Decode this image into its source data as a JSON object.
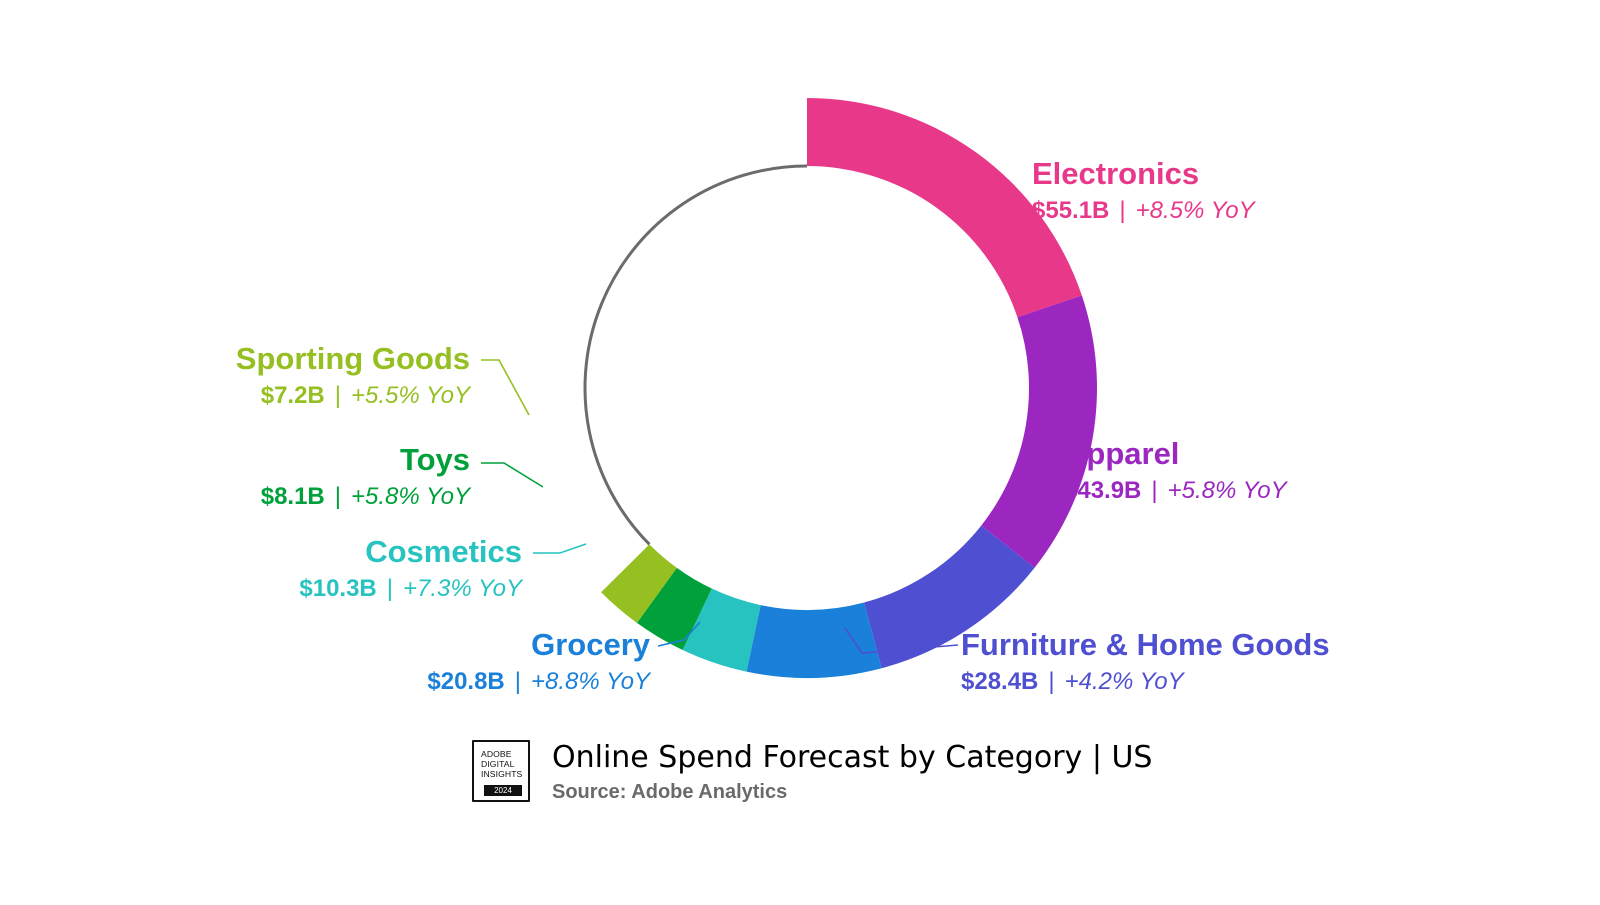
{
  "chart_data": {
    "type": "pie",
    "title": "Online Spend Forecast by Category | US",
    "source": "Source: Adobe Analytics",
    "categories": [
      "Electronics",
      "Apparel",
      "Furniture & Home Goods",
      "Grocery",
      "Cosmetics",
      "Toys",
      "Sporting Goods"
    ],
    "values": [
      55.1,
      43.9,
      28.4,
      20.8,
      10.3,
      8.1,
      7.2
    ],
    "value_labels": [
      "$55.1B",
      "$43.9B",
      "$28.4B",
      "$20.8B",
      "$10.3B",
      "$8.1B",
      "$7.2B"
    ],
    "yoy_labels": [
      "+8.5% YoY",
      "+5.8% YoY",
      "+4.2% YoY",
      "+8.8% YoY",
      "+7.3% YoY",
      "+5.8% YoY",
      "+5.5% YoY"
    ],
    "colors": [
      "#e8388a",
      "#9b27c0",
      "#4f4fd1",
      "#1a80d9",
      "#27c3c0",
      "#00a13a",
      "#96bf22"
    ],
    "variant": "donut",
    "separator": "|"
  },
  "badge": {
    "text": "ADOBE\nDIGITAL\nINSIGHTS",
    "year": "2024"
  }
}
